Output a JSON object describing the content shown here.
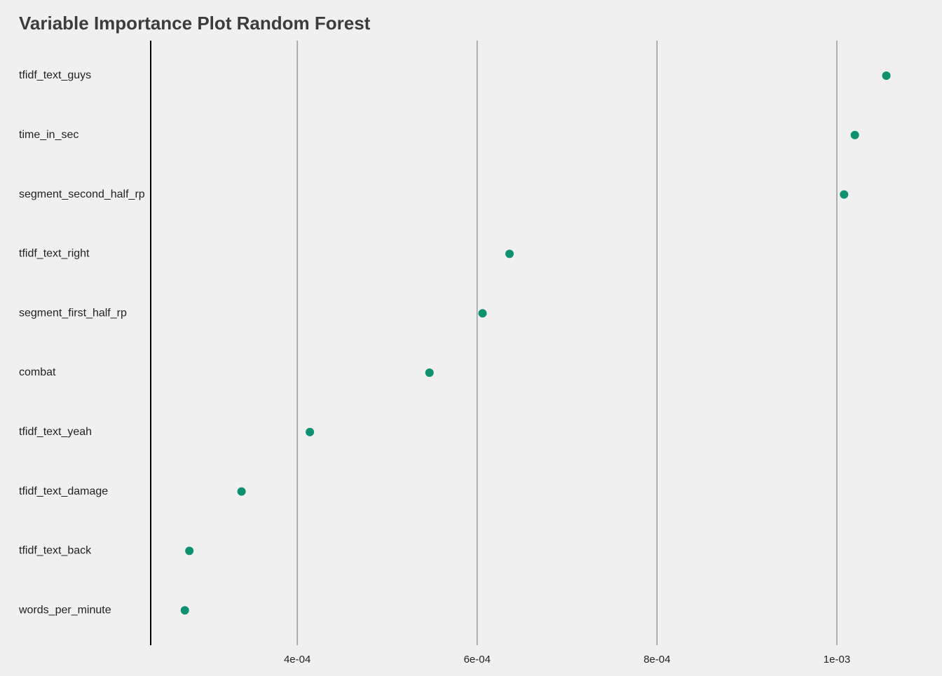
{
  "chart_data": {
    "type": "scatter",
    "title": "Variable Importance Plot Random Forest",
    "xlabel": "",
    "ylabel": "",
    "x_ticks": [
      0.0004,
      0.0006,
      0.0008,
      0.001
    ],
    "x_tick_labels": [
      "4e-04",
      "6e-04",
      "8e-04",
      "1e-03"
    ],
    "xlim": [
      0.000237,
      0.001106
    ],
    "grid": "vertical",
    "categories": [
      "tfidf_text_guys",
      "time_in_sec",
      "segment_second_half_rp",
      "tfidf_text_right",
      "segment_first_half_rp",
      "combat",
      "tfidf_text_yeah",
      "tfidf_text_damage",
      "tfidf_text_back",
      "words_per_minute"
    ],
    "values": [
      0.001055,
      0.00102,
      0.001008,
      0.000636,
      0.000606,
      0.000547,
      0.000414,
      0.000338,
      0.00028,
      0.000275
    ],
    "colors": {
      "point": "#0e9170",
      "gridline": "#8c8c8c",
      "axis": "#000000",
      "background": "#f0f0f0"
    }
  }
}
